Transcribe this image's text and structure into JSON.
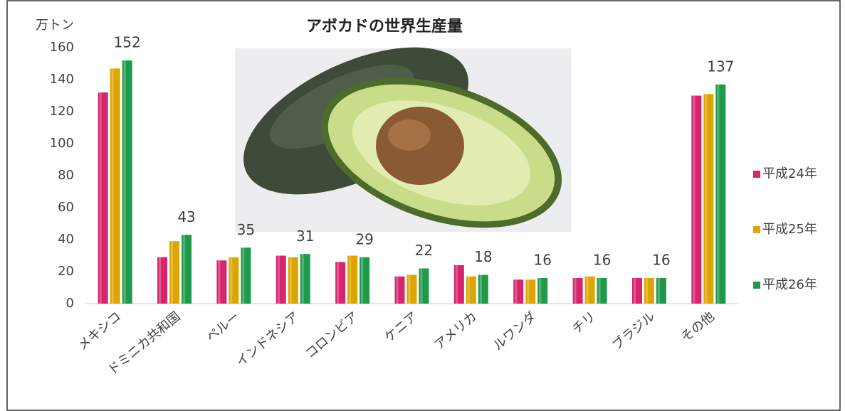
{
  "chart_data": {
    "type": "bar",
    "title": "アボカドの世界生産量",
    "y_label": "万トン",
    "categories": [
      "メキシコ",
      "ドミニカ共和国",
      "ペルー",
      "インドネシア",
      "コロンビア",
      "ケニア",
      "アメリカ",
      "ルワンダ",
      "チリ",
      "ブラジル",
      "その他"
    ],
    "series": [
      {
        "name": "平成24年",
        "color": "#d6246e",
        "values": [
          132,
          29,
          27,
          30,
          26,
          17,
          24,
          15,
          16,
          16,
          130
        ]
      },
      {
        "name": "平成25年",
        "color": "#dea500",
        "values": [
          147,
          39,
          29,
          29,
          30,
          18,
          17,
          15,
          17,
          16,
          131
        ]
      },
      {
        "name": "平成26年",
        "color": "#1f9a4b",
        "values": [
          152,
          43,
          35,
          31,
          29,
          22,
          18,
          16,
          16,
          16,
          137
        ],
        "labels": true
      }
    ],
    "ylim": [
      0,
      160
    ],
    "yticks": [
      0,
      20,
      40,
      60,
      80,
      100,
      120,
      140,
      160
    ],
    "grid": false,
    "legend": "right"
  }
}
